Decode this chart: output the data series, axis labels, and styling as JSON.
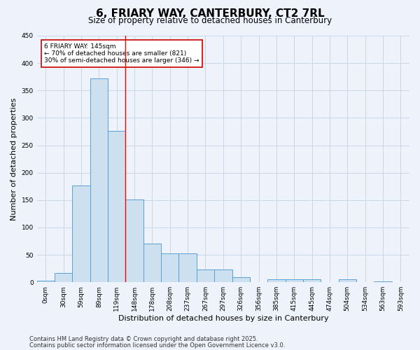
{
  "title": "6, FRIARY WAY, CANTERBURY, CT2 7RL",
  "subtitle": "Size of property relative to detached houses in Canterbury",
  "xlabel": "Distribution of detached houses by size in Canterbury",
  "ylabel": "Number of detached properties",
  "bar_labels": [
    "0sqm",
    "30sqm",
    "59sqm",
    "89sqm",
    "119sqm",
    "148sqm",
    "178sqm",
    "208sqm",
    "237sqm",
    "267sqm",
    "297sqm",
    "326sqm",
    "356sqm",
    "385sqm",
    "415sqm",
    "445sqm",
    "474sqm",
    "504sqm",
    "534sqm",
    "563sqm",
    "593sqm"
  ],
  "values": [
    3,
    17,
    176,
    372,
    276,
    151,
    70,
    53,
    53,
    23,
    23,
    9,
    0,
    6,
    5,
    6,
    0,
    6,
    0,
    2,
    0
  ],
  "bar_color": "#cce0f0",
  "bar_edge_color": "#5a9fd4",
  "grid_color": "#c8d8e8",
  "background_color": "#eef2fb",
  "red_line_x": 4.5,
  "annotation_line1": "6 FRIARY WAY: 145sqm",
  "annotation_line2": "← 70% of detached houses are smaller (821)",
  "annotation_line3": "30% of semi-detached houses are larger (346) →",
  "annotation_box_color": "#ffffff",
  "annotation_box_edge_color": "#cc0000",
  "ylim": [
    0,
    450
  ],
  "yticks": [
    0,
    50,
    100,
    150,
    200,
    250,
    300,
    350,
    400,
    450
  ],
  "footer_line1": "Contains HM Land Registry data © Crown copyright and database right 2025.",
  "footer_line2": "Contains public sector information licensed under the Open Government Licence v3.0.",
  "title_fontsize": 11,
  "subtitle_fontsize": 8.5,
  "label_fontsize": 8,
  "tick_fontsize": 6.5,
  "footer_fontsize": 6
}
